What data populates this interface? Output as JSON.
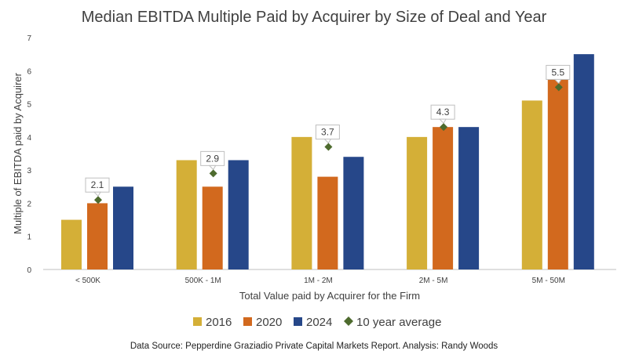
{
  "chart_data": {
    "type": "bar",
    "title": "Median EBITDA Multiple Paid by Acquirer by Size of Deal and Year",
    "xlabel": "Total Value paid by Acquirer for the Firm",
    "ylabel": "Multiple of EBITDA paid by Acquirer",
    "ylim": [
      0,
      7
    ],
    "yticks": [
      0,
      1,
      2,
      3,
      4,
      5,
      6,
      7
    ],
    "grid": false,
    "legend_position": "bottom",
    "categories": [
      "< 500K",
      "500K - 1M",
      "1M - 2M",
      "2M - 5M",
      "5M - 50M"
    ],
    "series": [
      {
        "name": "2016",
        "color": "#D4AF37",
        "values": [
          1.5,
          3.3,
          4.0,
          4.0,
          5.1
        ]
      },
      {
        "name": "2020",
        "color": "#D2691E",
        "values": [
          2.0,
          2.5,
          2.8,
          4.3,
          5.8
        ]
      },
      {
        "name": "2024",
        "color": "#264789",
        "values": [
          2.5,
          3.3,
          3.4,
          4.3,
          6.5
        ]
      }
    ],
    "average": {
      "name": "10 year average",
      "color": "#4E6B2E",
      "marker": "diamond",
      "values": [
        2.1,
        2.9,
        3.7,
        4.3,
        5.5
      ],
      "labels": [
        "2.1",
        "2.9",
        "3.7",
        "4.3",
        "5.5"
      ]
    }
  },
  "footer": "Data Source: Pepperdine Graziadio Private Capital Markets Report.  Analysis: Randy Woods"
}
